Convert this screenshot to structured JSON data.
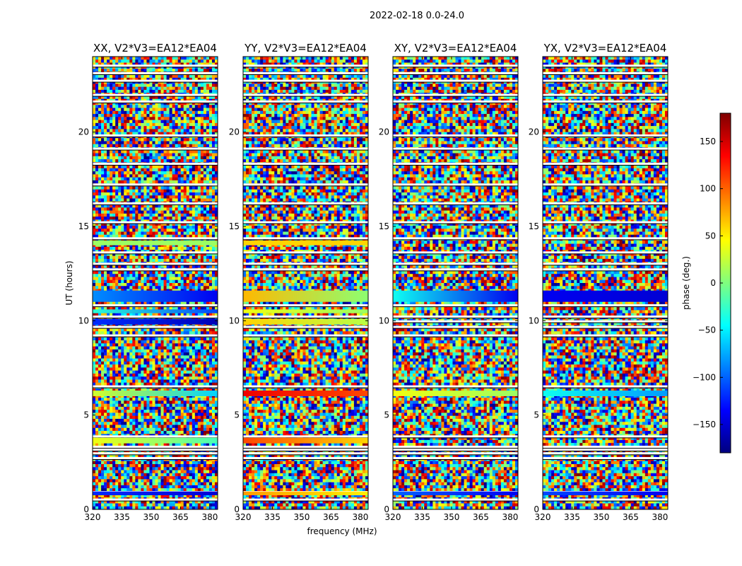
{
  "figure_title": "2022-02-18 0.0-24.0",
  "chart_data": {
    "type": "heatmap",
    "title": "2022-02-18 0.0-24.0",
    "xlabel": "frequency (MHz)",
    "ylabel": "UT (hours)",
    "xlim": [
      320,
      384
    ],
    "ylim": [
      0,
      24
    ],
    "xticks": [
      320,
      335,
      350,
      365,
      380
    ],
    "yticks": [
      0,
      5,
      10,
      15,
      20
    ],
    "colorbar": {
      "label": "phase (deg.)",
      "range": [
        -180,
        180
      ],
      "ticks": [
        -150,
        -100,
        -50,
        0,
        50,
        100,
        150
      ],
      "colormap": [
        "#00007f",
        "#0000ff",
        "#007fff",
        "#00ffff",
        "#7fff7f",
        "#ffff00",
        "#ff7f00",
        "#ff0000",
        "#7f0000"
      ]
    },
    "panels": [
      {
        "title": "XX, V2*V3=EA12*EA04",
        "smooth_bands": [
          {
            "t0": 11.0,
            "t1": 11.6,
            "phase": -85,
            "phase_end": -140
          },
          {
            "t0": 10.4,
            "t1": 10.6,
            "phase": -30,
            "phase_end": -110
          },
          {
            "t0": 9.8,
            "t1": 10.1,
            "phase": -120,
            "phase_end": -160
          },
          {
            "t0": 6.0,
            "t1": 6.3,
            "phase": 30,
            "phase_end": -60
          },
          {
            "t0": 3.5,
            "t1": 3.8,
            "phase": 40,
            "phase_end": -20
          },
          {
            "t0": 14.0,
            "t1": 14.25,
            "phase": 10,
            "phase_end": 10
          },
          {
            "t0": 0.75,
            "t1": 0.95,
            "phase": -120,
            "phase_end": -150
          }
        ]
      },
      {
        "title": "YY, V2*V3=EA12*EA04",
        "smooth_bands": [
          {
            "t0": 11.0,
            "t1": 11.6,
            "phase": 70,
            "phase_end": 5
          },
          {
            "t0": 10.4,
            "t1": 10.6,
            "phase": 40,
            "phase_end": 10
          },
          {
            "t0": 9.8,
            "t1": 10.1,
            "phase": 60,
            "phase_end": 20
          },
          {
            "t0": 6.0,
            "t1": 6.3,
            "phase": 140,
            "phase_end": 110
          },
          {
            "t0": 3.5,
            "t1": 3.8,
            "phase": 110,
            "phase_end": 60
          },
          {
            "t0": 14.0,
            "t1": 14.25,
            "phase": 60,
            "phase_end": 60
          },
          {
            "t0": 0.75,
            "t1": 0.95,
            "phase": 80,
            "phase_end": 50
          }
        ]
      },
      {
        "title": "XY, V2*V3=EA12*EA04",
        "smooth_bands": [
          {
            "t0": 11.0,
            "t1": 11.6,
            "phase": -40,
            "phase_end": -140
          },
          {
            "t0": 6.0,
            "t1": 6.3,
            "phase": 40,
            "phase_end": 10
          },
          {
            "t0": 0.75,
            "t1": 0.95,
            "phase": -100,
            "phase_end": -140
          }
        ]
      },
      {
        "title": "YX, V2*V3=EA12*EA04",
        "smooth_bands": [
          {
            "t0": 11.0,
            "t1": 11.6,
            "phase": -140,
            "phase_end": -150
          },
          {
            "t0": 6.0,
            "t1": 6.3,
            "phase": -40,
            "phase_end": -80
          },
          {
            "t0": 0.75,
            "t1": 0.95,
            "phase": -110,
            "phase_end": -140
          }
        ]
      }
    ],
    "flagged_rows_ut": [
      0.5,
      0.9,
      2.7,
      2.95,
      3.15,
      3.3,
      3.85,
      6.5,
      9.2,
      9.65,
      9.95,
      10.2,
      10.8,
      12.7,
      13.0,
      13.6,
      14.35,
      15.2,
      16.2,
      17.2,
      18.3,
      19.1,
      19.8,
      21.6,
      21.95,
      22.7,
      23.1,
      23.5
    ]
  }
}
